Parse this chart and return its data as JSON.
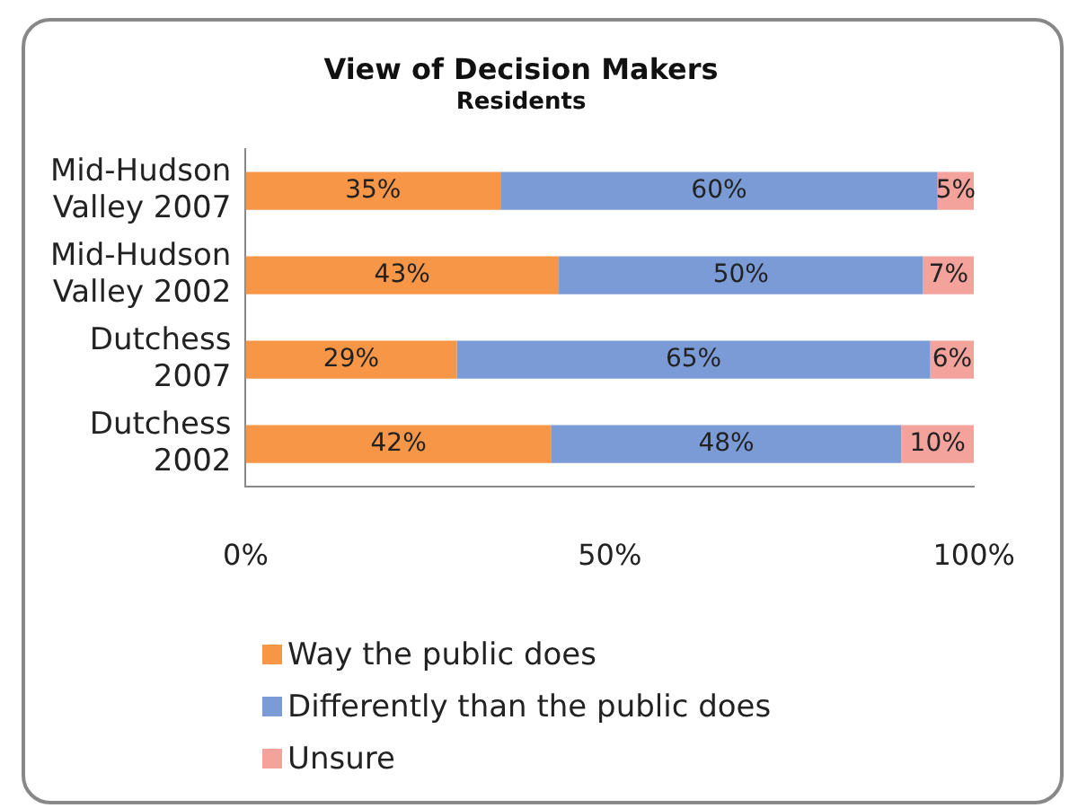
{
  "chart_data": {
    "type": "bar",
    "orientation": "horizontal",
    "stacked": true,
    "title": "View of Decision Makers",
    "subtitle": "Residents",
    "categories": [
      "Mid-Hudson Valley 2007",
      "Mid-Hudson Valley 2002",
      "Dutchess 2007",
      "Dutchess 2002"
    ],
    "series": [
      {
        "name": "Way the public does",
        "color": "#f79646",
        "values": [
          35,
          43,
          29,
          42
        ],
        "value_labels": [
          "35%",
          "43%",
          "29%",
          "42%"
        ]
      },
      {
        "name": "Differently than the public does",
        "color": "#7b9bd6",
        "values": [
          60,
          50,
          65,
          48
        ],
        "value_labels": [
          "60%",
          "50%",
          "65%",
          "48%"
        ]
      },
      {
        "name": "Unsure",
        "color": "#f4a29c",
        "values": [
          5,
          7,
          6,
          10
        ],
        "value_labels": [
          "5%",
          "7%",
          "6%",
          "10%"
        ]
      }
    ],
    "xlim": [
      0,
      100
    ],
    "xticks": [
      {
        "value": 0,
        "label": "0%"
      },
      {
        "value": 50,
        "label": "50%"
      },
      {
        "value": 100,
        "label": "100%"
      }
    ],
    "grid": false,
    "legend": "bottom left"
  }
}
